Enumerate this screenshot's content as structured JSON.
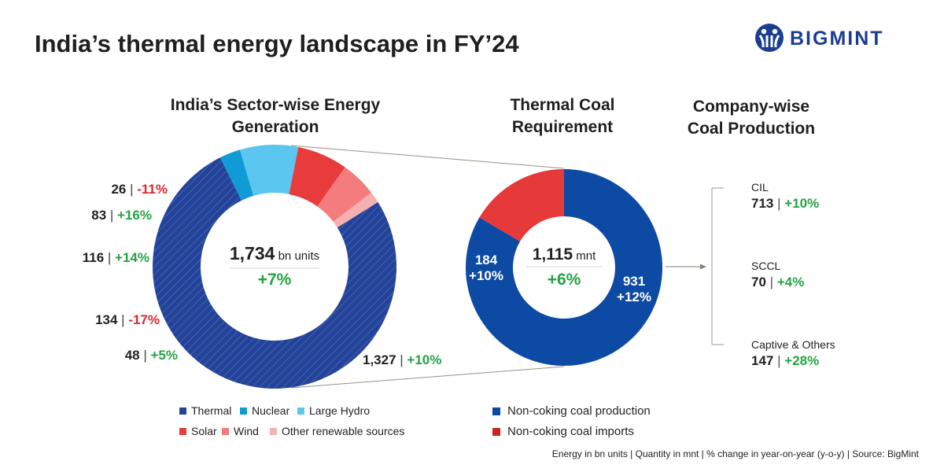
{
  "title": "India’s thermal energy landscape in FY’24",
  "logo": {
    "text": "BIGMINT",
    "color": "#1b3d92"
  },
  "section_titles": {
    "sector": [
      "India’s Sector-wise Energy",
      "Generation"
    ],
    "coal": [
      "Thermal Coal",
      "Requirement"
    ],
    "company": [
      "Company-wise",
      "Coal Production"
    ]
  },
  "colors": {
    "thermal": "#23439a",
    "nuclear": "#109ad6",
    "large_hydro": "#5bc6ef",
    "solar": "#e83c3c",
    "wind": "#f47c7c",
    "other_renewable": "#f6b0b0",
    "noncoking_production": "#0d4aa3",
    "noncoking_imports": "#e63a3a",
    "positive": "#25a244",
    "negative": "#e0262d"
  },
  "chart_data": [
    {
      "type": "donut",
      "name": "sector-generation",
      "center_value": "1,734",
      "center_unit": "bn units",
      "center_change": "+7%",
      "slices": [
        {
          "key": "thermal",
          "label": "Thermal",
          "value": 1327,
          "value_text": "1,327",
          "change": "+10%",
          "change_sign": "pos"
        },
        {
          "key": "nuclear",
          "label": "Nuclear",
          "value": 48,
          "value_text": "48",
          "change": "+5%",
          "change_sign": "pos"
        },
        {
          "key": "large_hydro",
          "label": "Large Hydro",
          "value": 134,
          "value_text": "134",
          "change": "-17%",
          "change_sign": "neg"
        },
        {
          "key": "solar",
          "label": "Solar",
          "value": 116,
          "value_text": "116",
          "change": "+14%",
          "change_sign": "pos"
        },
        {
          "key": "wind",
          "label": "Wind",
          "value": 83,
          "value_text": "83",
          "change": "+16%",
          "change_sign": "pos"
        },
        {
          "key": "other_renewable",
          "label": "Other renewable sources",
          "value": 26,
          "value_text": "26",
          "change": "-11%",
          "change_sign": "neg"
        }
      ]
    },
    {
      "type": "donut",
      "name": "thermal-coal-requirement",
      "center_value": "1,115",
      "center_unit": "mnt",
      "center_change": "+6%",
      "slices": [
        {
          "key": "noncoking_production",
          "label": "Non-coking coal production",
          "value": 931,
          "value_text": "931",
          "change": "+12%",
          "change_sign": "pos"
        },
        {
          "key": "noncoking_imports",
          "label": "Non-coking coal imports",
          "value": 184,
          "value_text": "184",
          "change": "+10%",
          "change_sign": "pos"
        }
      ]
    }
  ],
  "legend_left": [
    {
      "key": "thermal",
      "label": "Thermal"
    },
    {
      "key": "nuclear",
      "label": "Nuclear"
    },
    {
      "key": "large_hydro",
      "label": "Large Hydro"
    },
    {
      "key": "solar",
      "label": "Solar"
    },
    {
      "key": "wind",
      "label": "Wind"
    },
    {
      "key": "other_renewable",
      "label": "Other renewable sources"
    }
  ],
  "legend_right": [
    {
      "key": "noncoking_production",
      "label": "Non-coking coal production"
    },
    {
      "key": "noncoking_imports",
      "label": "Non-coking coal imports"
    }
  ],
  "companies": [
    {
      "name": "CIL",
      "value": "713",
      "change": "+10%"
    },
    {
      "name": "SCCL",
      "value": "70",
      "change": "+4%"
    },
    {
      "name": "Captive & Others",
      "value": "147",
      "change": "+28%"
    }
  ],
  "separator": "|",
  "footer": "Energy in bn units | Quantity in mnt  | % change in year-on-year (y-o-y)  |  Source: BigMint"
}
